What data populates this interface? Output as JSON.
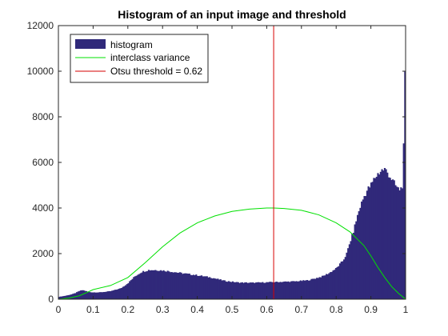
{
  "figure": {
    "background": "#ffffff"
  },
  "chart_data": {
    "type": "bar",
    "title": "Histogram of an input image and threshold",
    "xlabel": "",
    "ylabel": "",
    "xlim": [
      0,
      1
    ],
    "ylim": [
      0,
      12000
    ],
    "xticks": [
      "0",
      "0.1",
      "0.2",
      "0.3",
      "0.4",
      "0.5",
      "0.6",
      "0.7",
      "0.8",
      "0.9",
      "1"
    ],
    "yticks": [
      "0",
      "2000",
      "4000",
      "6000",
      "8000",
      "10000",
      "12000"
    ],
    "xtick_values": [
      0,
      0.1,
      0.2,
      0.3,
      0.4,
      0.5,
      0.6,
      0.7,
      0.8,
      0.9,
      1
    ],
    "ytick_values": [
      0,
      2000,
      4000,
      6000,
      8000,
      10000,
      12000
    ],
    "grid": false,
    "legend_position": "top-left",
    "legend": [
      {
        "label": "histogram",
        "kind": "patch",
        "color": "#30297a"
      },
      {
        "label": "interclass variance",
        "kind": "line",
        "color": "#00e000"
      },
      {
        "label": "Otsu threshold = 0.62",
        "kind": "line",
        "color": "#d60000"
      }
    ],
    "series": [
      {
        "name": "histogram",
        "kind": "bar",
        "color": "#30297a",
        "x": [
          0.0,
          0.02,
          0.04,
          0.05,
          0.06,
          0.07,
          0.08,
          0.09,
          0.1,
          0.12,
          0.15,
          0.18,
          0.2,
          0.22,
          0.24,
          0.26,
          0.28,
          0.3,
          0.33,
          0.36,
          0.4,
          0.44,
          0.48,
          0.52,
          0.56,
          0.6,
          0.64,
          0.68,
          0.72,
          0.76,
          0.78,
          0.8,
          0.82,
          0.83,
          0.84,
          0.85,
          0.86,
          0.87,
          0.88,
          0.89,
          0.9,
          0.91,
          0.92,
          0.93,
          0.94,
          0.95,
          0.96,
          0.97,
          0.98,
          0.99,
          0.995,
          1.0
        ],
        "y": [
          100,
          150,
          220,
          280,
          360,
          400,
          350,
          310,
          300,
          300,
          350,
          480,
          700,
          1000,
          1200,
          1280,
          1280,
          1260,
          1200,
          1130,
          1050,
          950,
          800,
          730,
          720,
          740,
          760,
          780,
          830,
          1000,
          1150,
          1350,
          1700,
          2000,
          2500,
          3000,
          3600,
          4100,
          4500,
          4800,
          5000,
          5300,
          5500,
          5650,
          5700,
          5500,
          5250,
          5000,
          4800,
          4900,
          7000,
          11500
        ]
      },
      {
        "name": "interclass variance",
        "kind": "line",
        "color": "#00e000",
        "x": [
          0.0,
          0.03,
          0.06,
          0.08,
          0.1,
          0.15,
          0.2,
          0.25,
          0.3,
          0.35,
          0.4,
          0.45,
          0.5,
          0.55,
          0.6,
          0.62,
          0.65,
          0.7,
          0.75,
          0.8,
          0.84,
          0.88,
          0.9,
          0.92,
          0.94,
          0.96,
          0.98,
          1.0
        ],
        "y": [
          0,
          50,
          150,
          280,
          420,
          600,
          950,
          1600,
          2300,
          2900,
          3350,
          3650,
          3850,
          3950,
          4000,
          4000,
          3980,
          3900,
          3700,
          3350,
          2950,
          2350,
          1900,
          1400,
          950,
          550,
          250,
          0
        ]
      },
      {
        "name": "Otsu threshold = 0.62",
        "kind": "vline",
        "color": "#d60000",
        "x": [
          0.62,
          0.62
        ],
        "y": [
          0,
          12000
        ]
      }
    ]
  }
}
